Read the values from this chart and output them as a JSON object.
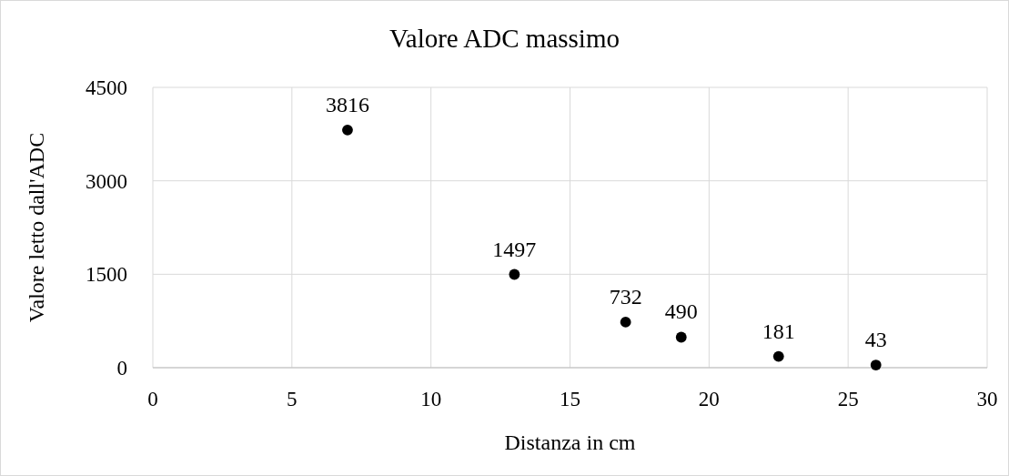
{
  "chart_data": {
    "type": "scatter",
    "title": "Valore ADC massimo",
    "xlabel": "Distanza in cm",
    "ylabel": "Valore letto dall'ADC",
    "x": [
      7,
      13,
      17,
      19,
      22.5,
      26
    ],
    "series": [
      {
        "color": "#000000",
        "values": [
          3816,
          1497,
          732,
          490,
          181,
          43
        ]
      }
    ],
    "xlim": [
      0,
      30
    ],
    "xticks": [
      0,
      5,
      10,
      15,
      20,
      25,
      30
    ],
    "ylim": [
      0,
      4500
    ],
    "yticks": [
      0,
      1500,
      3000,
      4500
    ],
    "grid": true,
    "marker": "circle",
    "data_labels": true
  }
}
